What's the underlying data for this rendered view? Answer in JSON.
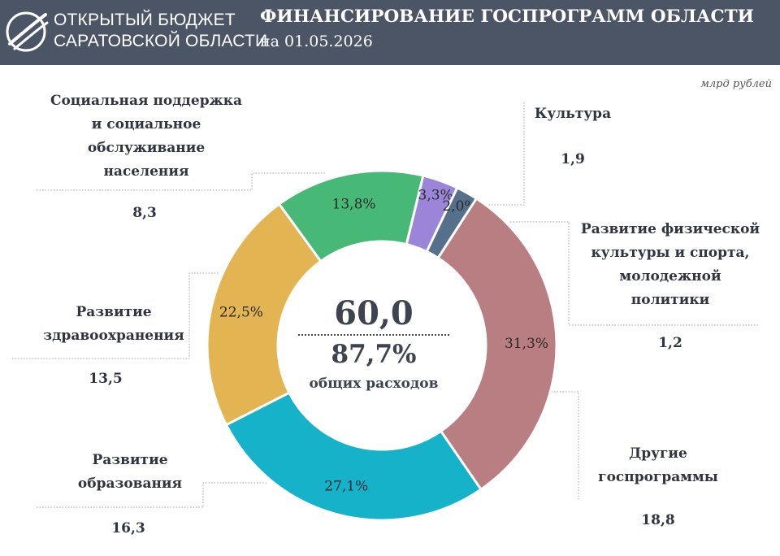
{
  "header": {
    "org_line1": "ОТКРЫТЫЙ БЮДЖЕТ",
    "org_line2": "САРАТОВСКОЙ ОБЛАСТИ",
    "title": "ФИНАНСИРОВАНИЕ ГОСПРОГРАММ ОБЛАСТИ",
    "subtitle": "на 01.05.2026"
  },
  "unit": "млрд рублей",
  "center": {
    "total": "60,0",
    "percent": "87,7%",
    "description": "общих расходов"
  },
  "chart_data": {
    "type": "pie",
    "donut": true,
    "unit": "млрд рублей",
    "total": 60.0,
    "slices": [
      {
        "label": [
          "Социальная поддержка",
          "и социальное",
          "обслуживание",
          "населения"
        ],
        "value": 8.3,
        "value_text": "8,3",
        "pct": 13.8,
        "pct_text": "13,8%",
        "color": "#48b877"
      },
      {
        "label": [
          "Культура"
        ],
        "value": 1.9,
        "value_text": "1,9",
        "pct": 3.3,
        "pct_text": "3,3%",
        "color": "#9a85d8"
      },
      {
        "label": [
          "Развитие физической",
          "культуры и спорта,",
          "молодежной",
          "политики"
        ],
        "value": 1.2,
        "value_text": "1,2",
        "pct": 2.0,
        "pct_text": "2,0%",
        "color": "#55708a"
      },
      {
        "label": [
          "Другие",
          "госпрограммы"
        ],
        "value": 18.8,
        "value_text": "18,8",
        "pct": 31.3,
        "pct_text": "31,3%",
        "color": "#b87e82"
      },
      {
        "label": [
          "Развитие",
          "образования"
        ],
        "value": 16.3,
        "value_text": "16,3",
        "pct": 27.1,
        "pct_text": "27,1%",
        "color": "#16b2c9"
      },
      {
        "label": [
          "Развитие",
          "здравоохранения"
        ],
        "value": 13.5,
        "value_text": "13,5",
        "pct": 22.5,
        "pct_text": "22,5%",
        "color": "#e2b452"
      }
    ]
  }
}
